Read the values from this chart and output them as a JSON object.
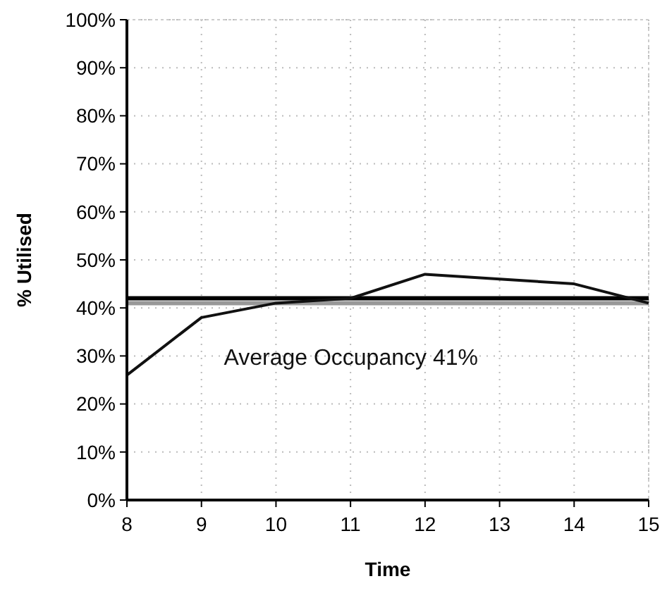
{
  "chart_data": {
    "type": "line",
    "xlabel": "Time",
    "ylabel": "% Utilised",
    "x": [
      8,
      9,
      10,
      11,
      12,
      13,
      14,
      15
    ],
    "series": [
      {
        "color": "#111111",
        "values": [
          26,
          38,
          41,
          42,
          47,
          46,
          45,
          41
        ]
      }
    ],
    "xlim": [
      8,
      15
    ],
    "xticks": [
      8,
      9,
      10,
      11,
      12,
      13,
      14,
      15
    ],
    "ylim": [
      0,
      100
    ],
    "yticks": [
      {
        "value": 0,
        "label": "0%"
      },
      {
        "value": 10,
        "label": "10%"
      },
      {
        "value": 20,
        "label": "20%"
      },
      {
        "value": 30,
        "label": "30%"
      },
      {
        "value": 40,
        "label": "40%"
      },
      {
        "value": 50,
        "label": "50%"
      },
      {
        "value": 60,
        "label": "60%"
      },
      {
        "value": 70,
        "label": "70%"
      },
      {
        "value": 80,
        "label": "80%"
      },
      {
        "value": 90,
        "label": "90%"
      },
      {
        "value": 100,
        "label": "100%"
      }
    ],
    "grid": true,
    "marker": "none",
    "line_style": "solid",
    "ref_lines": [
      {
        "axis": "y",
        "value": 42,
        "label": null,
        "color": "#000000"
      },
      {
        "axis": "y",
        "value": 41,
        "label": "Average Occupancy 41%",
        "color": "#999999"
      }
    ]
  }
}
